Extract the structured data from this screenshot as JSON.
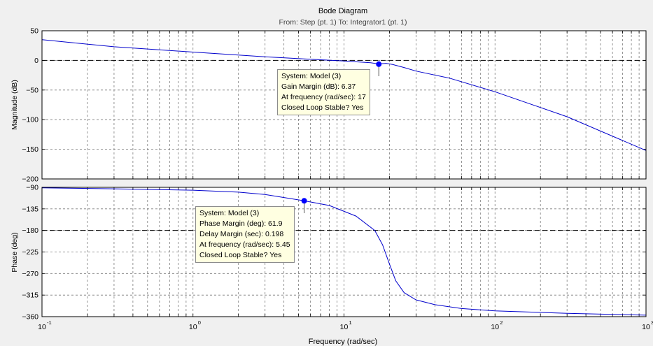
{
  "title": "Bode Diagram",
  "subtitle": "From: Step (pt. 1)  To: Integrator1 (pt. 1)",
  "xlabel": "Frequency  (rad/sec)",
  "x_tick_labels": [
    {
      "base": "10",
      "exp": "-1"
    },
    {
      "base": "10",
      "exp": "0"
    },
    {
      "base": "10",
      "exp": "1"
    },
    {
      "base": "10",
      "exp": "2"
    },
    {
      "base": "10",
      "exp": "3"
    }
  ],
  "colors": {
    "curve": "#0000cc",
    "marker": "#0000ff",
    "tooltip_bg": "#ffffe1",
    "background": "#f0f0f0"
  },
  "chart_data": [
    {
      "type": "line",
      "ylabel": "Magnitude (dB)",
      "xscale": "log",
      "xlim": [
        0.1,
        1000
      ],
      "ylim": [
        -200,
        50
      ],
      "yticks": [
        50,
        0,
        -50,
        -100,
        -150,
        -200
      ],
      "grid": true,
      "reference_line": 0,
      "series": [
        {
          "x": [
            0.1,
            0.3,
            1,
            3,
            6,
            10,
            15,
            17,
            19,
            21,
            25,
            30,
            50,
            100,
            300,
            1000
          ],
          "y": [
            35,
            23,
            14,
            6,
            2,
            -1,
            -4,
            -6,
            -5,
            -7,
            -12,
            -18,
            -30,
            -53,
            -95,
            -152
          ]
        }
      ],
      "marker": {
        "x": 17,
        "y": -6.37
      },
      "tooltip": [
        "System: Model (3)",
        "Gain Margin (dB): 6.37",
        "At frequency (rad/sec): 17",
        "Closed Loop Stable? Yes"
      ]
    },
    {
      "type": "line",
      "ylabel": "Phase (deg)",
      "xscale": "log",
      "xlim": [
        0.1,
        1000
      ],
      "ylim": [
        -360,
        -90
      ],
      "yticks": [
        -90,
        -135,
        -180,
        -225,
        -270,
        -315,
        -360
      ],
      "grid": true,
      "reference_line": -180,
      "series": [
        {
          "x": [
            0.1,
            0.3,
            1,
            2,
            3,
            5.45,
            8,
            12,
            16,
            18,
            20,
            22,
            25,
            30,
            40,
            60,
            100,
            300,
            1000
          ],
          "y": [
            -91,
            -93,
            -96,
            -100,
            -105,
            -118,
            -128,
            -150,
            -180,
            -210,
            -250,
            -285,
            -310,
            -325,
            -335,
            -343,
            -348,
            -353,
            -357
          ]
        }
      ],
      "marker": {
        "x": 5.45,
        "y": -118.1
      },
      "tooltip": [
        "System: Model (3)",
        "Phase Margin (deg): 61.9",
        "Delay Margin (sec): 0.198",
        "At frequency (rad/sec): 5.45",
        "Closed Loop Stable? Yes"
      ]
    }
  ]
}
